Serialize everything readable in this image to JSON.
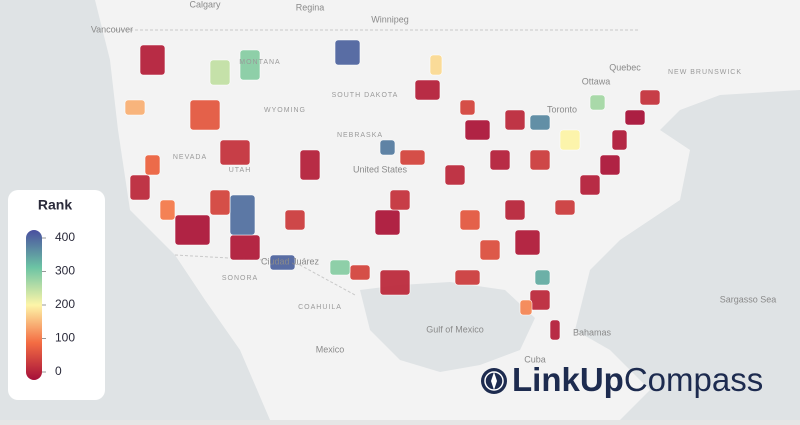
{
  "map": {
    "labels": [
      "Calgary",
      "Regina",
      "Winnipeg",
      "Vancouver",
      "MONTANA",
      "WYOMING",
      "SOUTH DAKOTA",
      "NEBRASKA",
      "NEVADA",
      "UTAH",
      "United States",
      "Ottawa",
      "Toronto",
      "Quebec",
      "NEW BRUNSWICK",
      "Sargasso Sea",
      "Gulf of Mexico",
      "Mexico",
      "Bahamas",
      "SONORA",
      "COAHUILA",
      "Ciudad Juárez",
      "Cuba"
    ],
    "legend": {
      "title": "Rank",
      "range": [
        0,
        400
      ],
      "ticks": [
        0,
        100,
        200,
        300,
        400
      ],
      "colorscale": [
        "#a50f3a",
        "#f46d43",
        "#fdf5a8",
        "#6cc4a4",
        "#4a4f9f"
      ]
    },
    "regions": [
      20,
      150,
      80,
      30,
      10,
      15,
      370,
      60,
      40,
      20,
      50,
      10,
      30,
      60,
      280,
      40,
      60,
      20,
      10,
      30,
      20,
      30,
      25,
      15,
      50,
      30,
      20,
      120,
      50,
      20,
      10,
      15,
      5,
      40,
      200,
      350,
      50,
      80,
      70,
      320,
      260,
      60,
      360,
      240,
      280,
      380,
      180,
      90,
      110,
      380
    ]
  },
  "brand": {
    "bold": "LinkUp",
    "light": "Compass"
  }
}
